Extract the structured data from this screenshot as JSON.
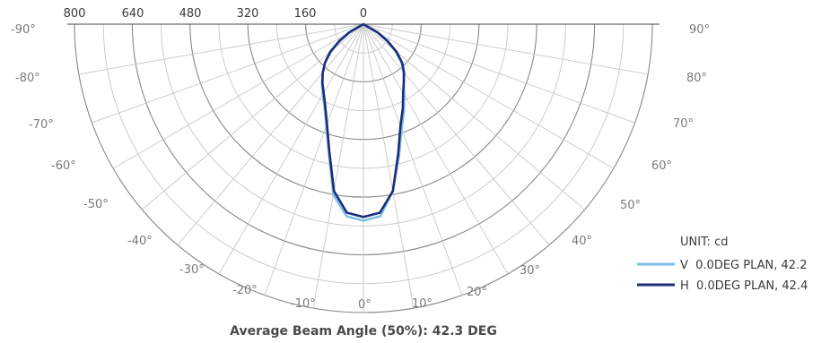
{
  "chart_data": {
    "type": "polar-line",
    "footer": "Average Beam Angle (50%): 42.3 DEG",
    "unit_label": "UNIT: cd",
    "radial_ticks": [
      800,
      640,
      480,
      320,
      160,
      0
    ],
    "radial_max": 800,
    "left_angle_labels": [
      "-90°",
      "-80°",
      "-70°",
      "-60°",
      "-50°",
      "-40°",
      "-30°",
      "-20°",
      "-10°"
    ],
    "right_angle_labels": [
      "90°",
      "80°",
      "70°",
      "60°",
      "50°",
      "40°",
      "30°",
      "20°",
      "10°"
    ],
    "center_label": "0°",
    "colors": {
      "grid_major": "#888888",
      "grid_minor": "#c8c8c8",
      "series_v": "#7fbfe6",
      "series_h": "#1c2e7a"
    },
    "series": [
      {
        "name": "V  0.0DEG PLAN, 42.2",
        "color": "#7fbfe6",
        "angles": [
          -60,
          -55,
          -50,
          -45,
          -40,
          -35,
          -30,
          -25,
          -20,
          -15,
          -10,
          -5,
          0,
          5,
          10,
          15,
          20,
          25,
          30,
          35,
          40,
          45,
          50,
          55,
          60
        ],
        "values": [
          45,
          80,
          115,
          150,
          175,
          200,
          225,
          255,
          300,
          370,
          480,
          535,
          545,
          535,
          470,
          380,
          310,
          265,
          225,
          195,
          172,
          148,
          115,
          80,
          45
        ]
      },
      {
        "name": "H  0.0DEG PLAN, 42.4",
        "color": "#1c2e7a",
        "angles": [
          -60,
          -55,
          -50,
          -45,
          -40,
          -35,
          -30,
          -25,
          -20,
          -15,
          -10,
          -5,
          0,
          5,
          10,
          15,
          20,
          25,
          30,
          35,
          40,
          45,
          50,
          55,
          60
        ],
        "values": [
          45,
          82,
          120,
          150,
          175,
          198,
          220,
          250,
          295,
          365,
          470,
          525,
          535,
          525,
          470,
          372,
          300,
          258,
          220,
          195,
          175,
          152,
          120,
          82,
          45
        ]
      }
    ]
  }
}
